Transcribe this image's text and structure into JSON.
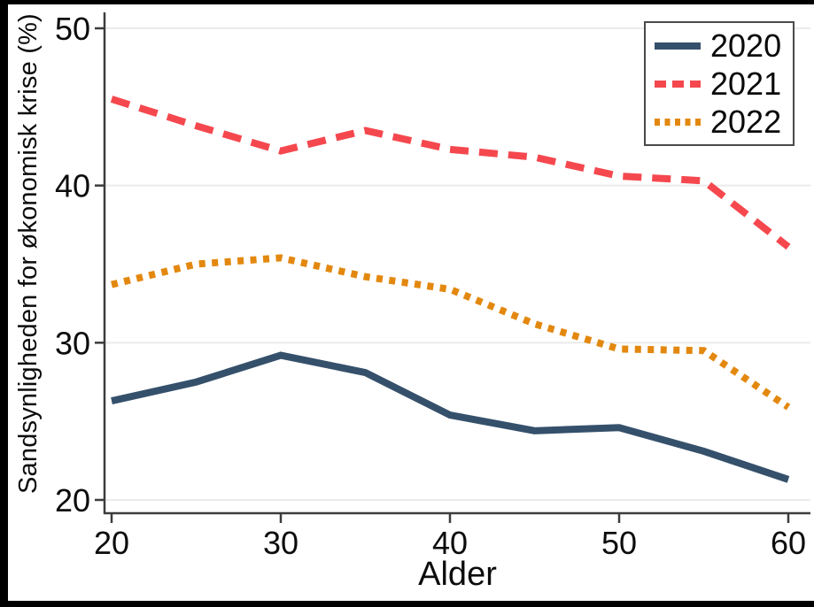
{
  "figure": {
    "background_color": "#ffffff",
    "border_color": "#000000"
  },
  "chart_data": {
    "type": "line",
    "title": "",
    "xlabel": "Alder",
    "ylabel": "Sandsynligheden for økonomisk krise (%)",
    "x": [
      20,
      25,
      30,
      35,
      40,
      45,
      50,
      55,
      60
    ],
    "xlim": [
      20,
      60
    ],
    "ylim": [
      20,
      50
    ],
    "x_ticks": [
      20,
      30,
      40,
      50,
      60
    ],
    "y_ticks": [
      20,
      30,
      40,
      50
    ],
    "grid": "horizontal-only",
    "legend_position": "top-right-inside",
    "series": [
      {
        "name": "2020",
        "style": "solid",
        "color": "#35506b",
        "values": [
          26.3,
          27.5,
          29.2,
          28.1,
          25.4,
          24.4,
          24.6,
          23.1,
          21.3
        ]
      },
      {
        "name": "2021",
        "style": "dashed",
        "color": "#f5484e",
        "values": [
          45.5,
          43.8,
          42.2,
          43.5,
          42.3,
          41.8,
          40.6,
          40.3,
          36.1
        ]
      },
      {
        "name": "2022",
        "style": "dotted",
        "color": "#e3880f",
        "values": [
          33.7,
          35.0,
          35.4,
          34.2,
          33.4,
          31.2,
          29.6,
          29.5,
          25.9
        ]
      }
    ],
    "axis_color": "#3c3c3c",
    "gridline_color": "#ebebeb",
    "tick_label_color": "#0c0c0c"
  }
}
